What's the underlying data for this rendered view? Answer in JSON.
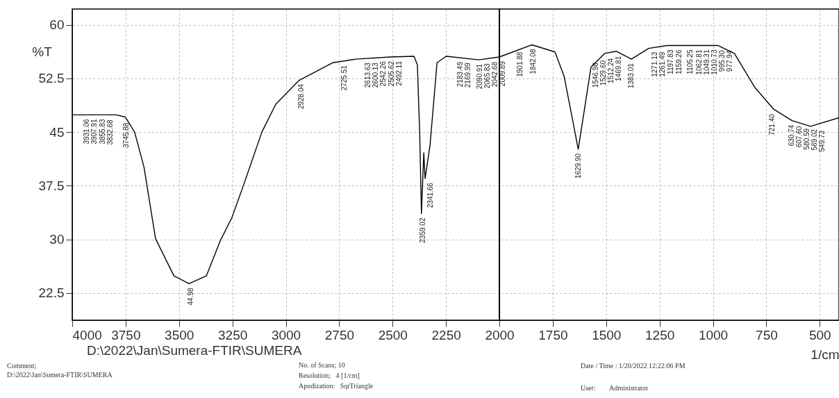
{
  "chart_data": {
    "type": "line",
    "ylabel": "%T",
    "xlabel": "1/cm",
    "x": [
      4000,
      3900,
      3794,
      3751,
      3708,
      3664,
      3610,
      3524,
      3453,
      3372,
      3307,
      3253,
      3199,
      3112,
      3047,
      2939,
      2779,
      2672,
      2510,
      2400,
      2384,
      2373,
      2365,
      2354,
      2348,
      2325,
      2292,
      2249,
      2097,
      2000,
      1848,
      1740,
      1697,
      1665,
      1631,
      1598,
      1571,
      1506,
      1452,
      1382,
      1301,
      1214,
      976,
      900,
      803,
      716,
      630,
      543,
      410
    ],
    "series": [
      {
        "color": "#000000",
        "values": [
          47.4,
          47.4,
          47.4,
          47.1,
          45.0,
          40.1,
          30.1,
          24.9,
          23.8,
          24.9,
          29.8,
          33.0,
          37.5,
          45.0,
          48.9,
          52.2,
          54.7,
          55.2,
          55.5,
          55.6,
          54.4,
          44.7,
          33.6,
          42.1,
          38.5,
          43.1,
          54.7,
          55.6,
          55.1,
          55.5,
          57.2,
          56.2,
          52.8,
          47.9,
          42.6,
          48.9,
          54.1,
          56.0,
          56.3,
          55.2,
          56.7,
          57.1,
          57.1,
          56.0,
          51.2,
          48.2,
          46.6,
          45.8,
          47.0
        ]
      }
    ],
    "xlim": [
      4000,
      410
    ],
    "ylim": [
      18.7,
      62.2
    ],
    "xticks": [
      4000,
      3750,
      3500,
      3250,
      3000,
      2750,
      2500,
      2250,
      2000,
      1750,
      1500,
      1250,
      1000,
      750,
      500
    ],
    "yticks": [
      60,
      52.5,
      45,
      37.5,
      30,
      22.5
    ],
    "grid": true,
    "ref_lines": [
      {
        "axis": "x",
        "value": 2000,
        "color": "#000000"
      }
    ],
    "annotations": [
      {
        "text": "3931.06",
        "x": 3931.06,
        "y": 47.4
      },
      {
        "text": "3907.91",
        "x": 3907.91,
        "y": 47.4
      },
      {
        "text": "3855.83",
        "x": 3855.83,
        "y": 47.4
      },
      {
        "text": "3832.68",
        "x": 3832.68,
        "y": 47.3
      },
      {
        "text": "3745.88",
        "x": 3745.88,
        "y": 46.9
      },
      {
        "text": "44.98",
        "x": 3444.98,
        "y": 23.8
      },
      {
        "text": "2928.04",
        "x": 2928.04,
        "y": 52.3
      },
      {
        "text": "2725.51",
        "x": 2725.51,
        "y": 54.9
      },
      {
        "text": "2613.63",
        "x": 2613.63,
        "y": 55.3
      },
      {
        "text": "2600.13",
        "x": 2600.13,
        "y": 55.3
      },
      {
        "text": "2542.26",
        "x": 2542.26,
        "y": 55.5
      },
      {
        "text": "2505.62",
        "x": 2505.62,
        "y": 55.5
      },
      {
        "text": "2492.11",
        "x": 2492.11,
        "y": 55.5
      },
      {
        "text": "2359.02",
        "x": 2359.02,
        "y": 33.6
      },
      {
        "text": "2341.66",
        "x": 2341.66,
        "y": 38.5
      },
      {
        "text": "2183.49",
        "x": 2183.49,
        "y": 55.4
      },
      {
        "text": "2169.99",
        "x": 2169.99,
        "y": 55.3
      },
      {
        "text": "2090.91",
        "x": 2090.91,
        "y": 55.1
      },
      {
        "text": "2065.83",
        "x": 2065.83,
        "y": 55.2
      },
      {
        "text": "2042.68",
        "x": 2042.68,
        "y": 55.4
      },
      {
        "text": "2009.89",
        "x": 2009.89,
        "y": 55.5
      },
      {
        "text": "1901.88",
        "x": 1901.88,
        "y": 56.8
      },
      {
        "text": "1842.08",
        "x": 1842.08,
        "y": 57.2
      },
      {
        "text": "1629.90",
        "x": 1629.9,
        "y": 42.6
      },
      {
        "text": "1546.96",
        "x": 1546.96,
        "y": 55.3
      },
      {
        "text": "1529.60",
        "x": 1529.6,
        "y": 55.6
      },
      {
        "text": "1512.24",
        "x": 1512.24,
        "y": 55.9
      },
      {
        "text": "1469.81",
        "x": 1469.81,
        "y": 56.2
      },
      {
        "text": "1383.01",
        "x": 1383.01,
        "y": 55.2
      },
      {
        "text": "1271.13",
        "x": 1271.13,
        "y": 56.8
      },
      {
        "text": "1261.49",
        "x": 1261.49,
        "y": 56.8
      },
      {
        "text": "1197.83",
        "x": 1197.83,
        "y": 57.1
      },
      {
        "text": "1159.26",
        "x": 1159.26,
        "y": 57.1
      },
      {
        "text": "1105.25",
        "x": 1105.25,
        "y": 57.1
      },
      {
        "text": "1062.81",
        "x": 1062.81,
        "y": 57.1
      },
      {
        "text": "1049.31",
        "x": 1049.31,
        "y": 57.1
      },
      {
        "text": "1010.73",
        "x": 1010.73,
        "y": 57.1
      },
      {
        "text": "995.30",
        "x": 995.3,
        "y": 57.0
      },
      {
        "text": "977.94",
        "x": 977.94,
        "y": 57.0
      },
      {
        "text": "721.40",
        "x": 721.4,
        "y": 48.1
      },
      {
        "text": "630.74",
        "x": 630.74,
        "y": 46.6
      },
      {
        "text": "607.60",
        "x": 607.6,
        "y": 46.4
      },
      {
        "text": "580.59",
        "x": 580.59,
        "y": 46.1
      },
      {
        "text": "569.02",
        "x": 569.02,
        "y": 46.0
      },
      {
        "text": "549.73",
        "x": 549.73,
        "y": 45.8
      },
      "D:\\2022\\Jan\\Sumera-FTIR\\SUMERA",
      "Comment;",
      "D:\\2022\\Jan\\Sumera-FTIR\\SUMERA",
      "No. of Scans; 10",
      "Resolution;   4 [1/cm]",
      "Apodization:   SqrTriangle",
      "Date / Time : 1/20/2022 12:22:06 PM",
      "User:        Administrator"
    ]
  }
}
